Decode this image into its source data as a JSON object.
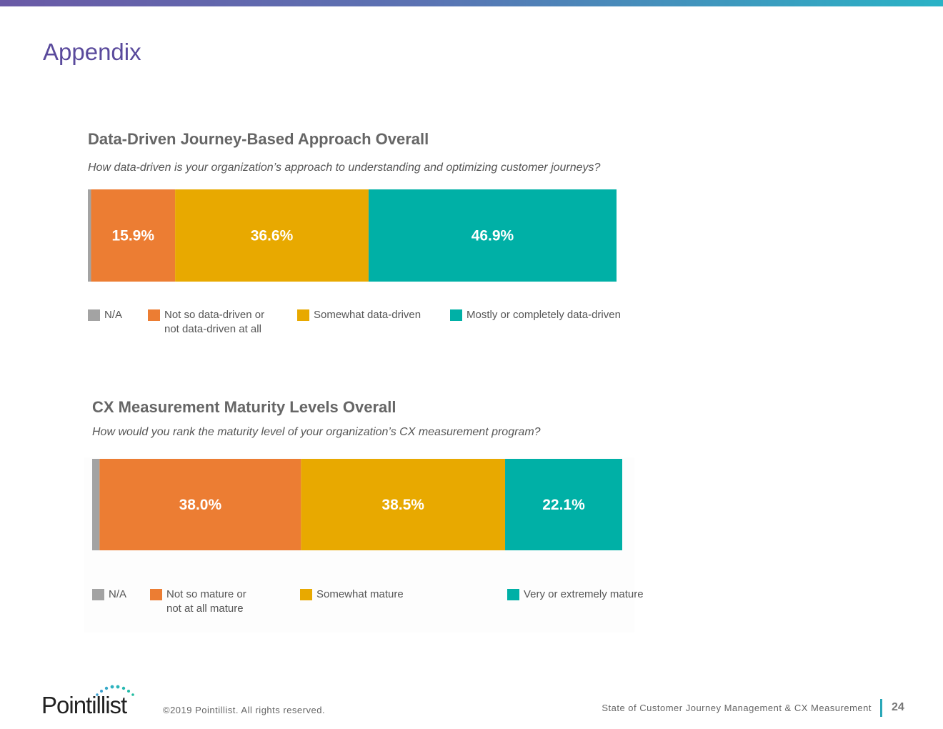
{
  "page": {
    "title": "Appendix",
    "copyright": "©2019 Pointillist. All rights reserved.",
    "report_title": "State of Customer Journey Management & CX Measurement",
    "page_number": "24",
    "logo": "Pointillist"
  },
  "colors": {
    "na": "#a3a3a3",
    "low": "#ec7d33",
    "mid": "#e8a900",
    "high": "#00b0a6"
  },
  "chart_data": [
    {
      "type": "bar",
      "orientation": "horizontal-stacked-100",
      "title": "Data-Driven Journey-Based Approach Overall",
      "subtitle": "How data-driven is your organization’s approach to understanding and optimizing customer journeys?",
      "series": [
        {
          "name": "N/A",
          "value": 0.6,
          "label": "",
          "color": "#a3a3a3"
        },
        {
          "name": "Not so data-driven or\nnot data-driven at all",
          "value": 15.9,
          "label": "15.9%",
          "color": "#ec7d33"
        },
        {
          "name": "Somewhat data-driven",
          "value": 36.6,
          "label": "36.6%",
          "color": "#e8a900"
        },
        {
          "name": "Mostly or completely data-driven",
          "value": 46.9,
          "label": "46.9%",
          "color": "#00b0a6"
        }
      ],
      "legend": "bottom"
    },
    {
      "type": "bar",
      "orientation": "horizontal-stacked-100",
      "title": "CX Measurement Maturity Levels Overall",
      "subtitle": "How would you rank the maturity level of your organization’s CX measurement program?",
      "series": [
        {
          "name": "N/A",
          "value": 1.4,
          "label": "",
          "color": "#a3a3a3"
        },
        {
          "name": "Not so mature or\nnot at all mature",
          "value": 38.0,
          "label": "38.0%",
          "color": "#ec7d33"
        },
        {
          "name": "Somewhat mature",
          "value": 38.5,
          "label": "38.5%",
          "color": "#e8a900"
        },
        {
          "name": "Very or extremely mature",
          "value": 22.1,
          "label": "22.1%",
          "color": "#00b0a6"
        }
      ],
      "legend": "bottom"
    }
  ]
}
